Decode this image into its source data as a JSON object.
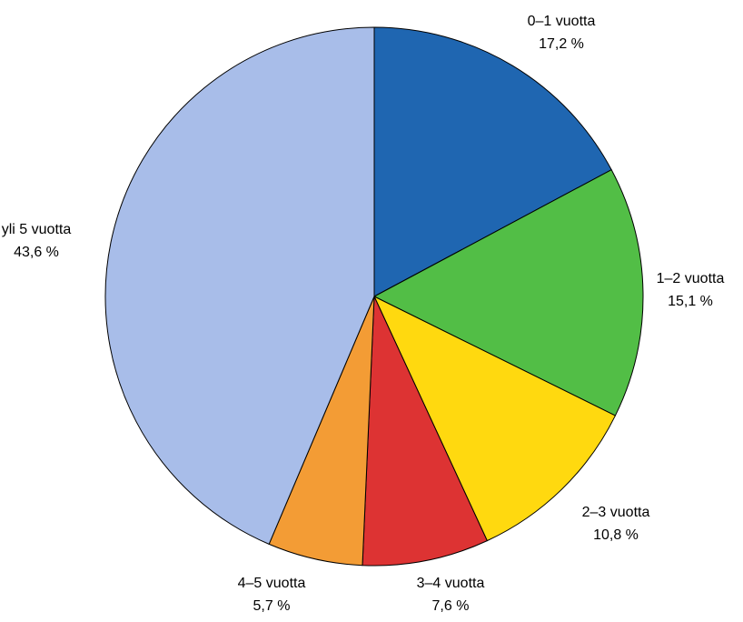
{
  "chart_data": {
    "type": "pie",
    "title": "",
    "start_angle_deg": 0,
    "direction": "clockwise",
    "slices": [
      {
        "label": "0–1 vuotta",
        "value": 17.2,
        "value_label": "17,2 %",
        "color": "#1f66b1"
      },
      {
        "label": "1–2 vuotta",
        "value": 15.1,
        "value_label": "15,1 %",
        "color": "#52be46"
      },
      {
        "label": "2–3 vuotta",
        "value": 10.8,
        "value_label": "10,8 %",
        "color": "#ffd90f"
      },
      {
        "label": "3–4 vuotta",
        "value": 7.6,
        "value_label": "7,6 %",
        "color": "#dd3333"
      },
      {
        "label": "4–5 vuotta",
        "value": 5.7,
        "value_label": "5,7 %",
        "color": "#f39c35"
      },
      {
        "label": "yli 5 vuotta",
        "value": 43.6,
        "value_label": "43,6 %",
        "color": "#a8bde9"
      }
    ]
  }
}
